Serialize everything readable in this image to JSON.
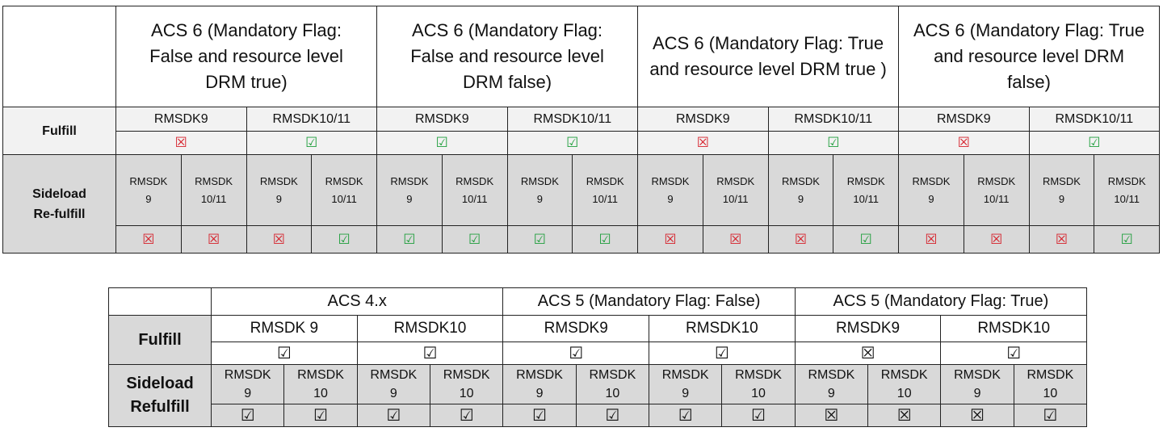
{
  "table1": {
    "headers": [
      "ACS 6 (Mandatory Flag: False and resource level DRM true)",
      "ACS 6 (Mandatory Flag: False and resource level DRM false)",
      "ACS 6 (Mandatory Flag: True and resource level DRM true )",
      "ACS 6 (Mandatory Flag: True and resource level DRM false)"
    ],
    "fulfill_label": "Fulfill",
    "fulfill_versions": [
      "RMSDK9",
      "RMSDK10/11",
      "RMSDK9",
      "RMSDK10/11",
      "RMSDK9",
      "RMSDK10/11",
      "RMSDK9",
      "RMSDK10/11"
    ],
    "fulfill_marks": [
      "☒",
      "☑",
      "☑",
      "☑",
      "☒",
      "☑",
      "☒",
      "☑"
    ],
    "sideload_label": "Sideload\nRe-fulfill",
    "sideload_versions": [
      "RMSDK\n9",
      "RMSDK\n10/11",
      "RMSDK\n9",
      "RMSDK\n10/11",
      "RMSDK\n9",
      "RMSDK\n10/11",
      "RMSDK\n9",
      "RMSDK\n10/11",
      "RMSDK\n9",
      "RMSDK\n10/11",
      "RMSDK\n9",
      "RMSDK\n10/11",
      "RMSDK\n9",
      "RMSDK\n10/11",
      "RMSDK\n9",
      "RMSDK\n10/11"
    ],
    "sideload_marks": [
      "☒",
      "☒",
      "☒",
      "☑",
      "☑",
      "☑",
      "☑",
      "☑",
      "☒",
      "☒",
      "☒",
      "☑",
      "☒",
      "☒",
      "☒",
      "☑"
    ],
    "symbol_colors": {
      "☑": "#1f9e3c",
      "☒": "#d6202a"
    }
  },
  "table2": {
    "headers": [
      "ACS 4.x",
      "ACS 5 (Mandatory Flag: False)",
      "ACS 5 (Mandatory Flag: True)"
    ],
    "fulfill_label": "Fulfill",
    "fulfill_versions": [
      "RMSDK 9",
      "RMSDK10",
      "RMSDK9",
      "RMSDK10",
      "RMSDK9",
      "RMSDK10"
    ],
    "fulfill_marks": [
      "☑",
      "☑",
      "☑",
      "☑",
      "☒",
      "☑"
    ],
    "sideload_label": "Sideload\nRefulfill",
    "sideload_versions": [
      "RMSDK\n9",
      "RMSDK\n10",
      "RMSDK\n9",
      "RMSDK\n10",
      "RMSDK\n9",
      "RMSDK\n10",
      "RMSDK\n9",
      "RMSDK\n10",
      "RMSDK\n9",
      "RMSDK\n10",
      "RMSDK\n9",
      "RMSDK\n10"
    ],
    "sideload_marks": [
      "☑",
      "☑",
      "☑",
      "☑",
      "☑",
      "☑",
      "☑",
      "☑",
      "☒",
      "☒",
      "☒",
      "☑"
    ]
  }
}
